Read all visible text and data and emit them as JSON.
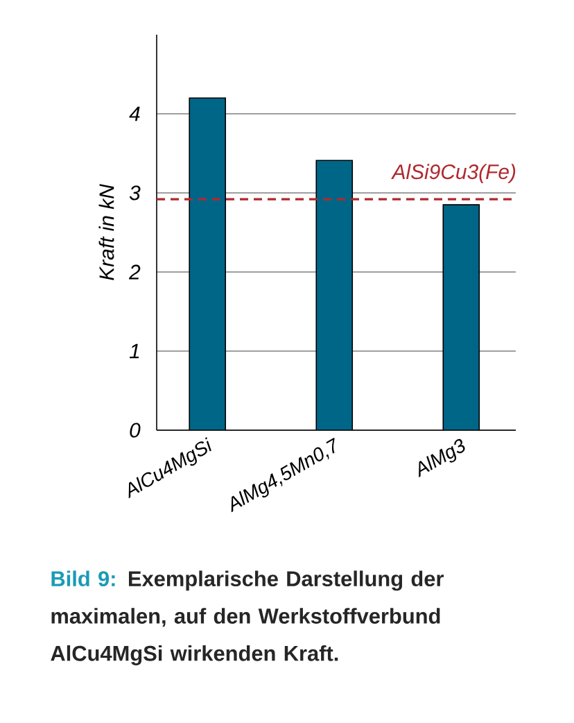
{
  "chart_data": {
    "type": "bar",
    "ylabel": "Kraft in kN",
    "categories": [
      "AlCu4MgSi",
      "AlMg4,5Mn0,7",
      "AlMg3"
    ],
    "values": [
      4.2,
      3.41,
      2.85
    ],
    "color": "#006688",
    "ylim": [
      0,
      5
    ],
    "yticks": [
      0,
      1,
      2,
      3,
      4
    ],
    "grid": "y",
    "ref_lines": [
      {
        "axis": "y",
        "value": 2.92,
        "label": "AlSi9Cu3(Fe)",
        "color": "#b0282e",
        "line_style": "dashed"
      }
    ],
    "annotations": [
      "Bild 9:",
      "Exemplarische Darstellung der maximalen, auf den Werkstoffverbund AlCu4MgSi wirkenden Kraft."
    ]
  }
}
